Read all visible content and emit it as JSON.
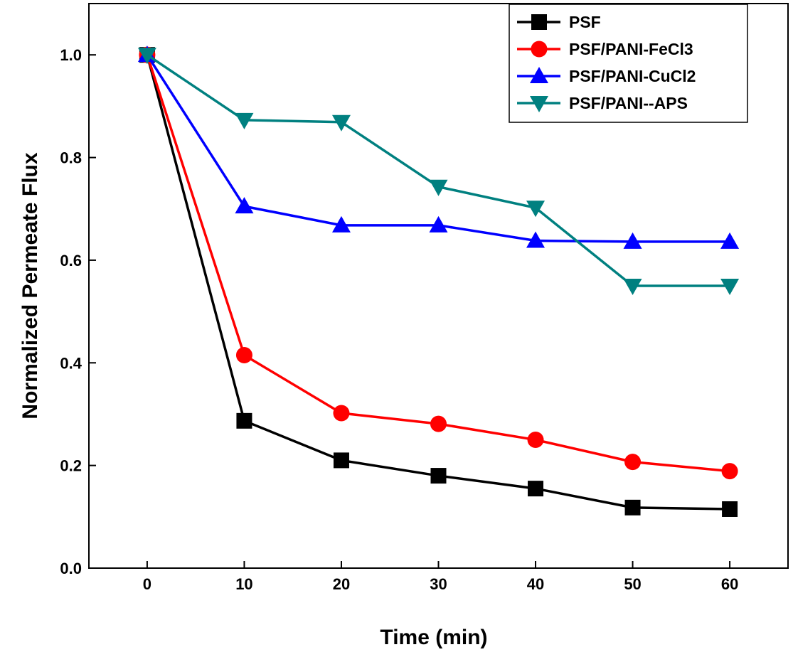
{
  "chart_data": {
    "type": "line",
    "title": "",
    "xlabel": "Time (min)",
    "ylabel": "Normalized Permeate Flux",
    "x": [
      0,
      10,
      20,
      30,
      40,
      50,
      60
    ],
    "xlim": [
      -6,
      66
    ],
    "ylim": [
      0,
      1.1
    ],
    "xticks": [
      0,
      10,
      20,
      30,
      40,
      50,
      60
    ],
    "yticks": [
      0.0,
      0.2,
      0.4,
      0.6,
      0.8,
      1.0
    ],
    "ytick_labels": [
      "0.0",
      "0.2",
      "0.4",
      "0.6",
      "0.8",
      "1.0"
    ],
    "grid": false,
    "legend_position": "top-right",
    "series": [
      {
        "name": "PSF",
        "color": "#000000",
        "marker": "square",
        "values": [
          1.0,
          0.287,
          0.21,
          0.18,
          0.155,
          0.118,
          0.115
        ]
      },
      {
        "name": "PSF/PANI-FeCl3",
        "color": "#ff0000",
        "marker": "circle",
        "values": [
          1.0,
          0.415,
          0.302,
          0.281,
          0.25,
          0.207,
          0.189
        ]
      },
      {
        "name": "PSF/PANI-CuCl2",
        "color": "#0000ff",
        "marker": "triangle-up",
        "values": [
          1.0,
          0.705,
          0.668,
          0.668,
          0.638,
          0.636,
          0.636
        ]
      },
      {
        "name": "PSF/PANI--APS",
        "color": "#008080",
        "marker": "triangle-down",
        "values": [
          1.0,
          0.873,
          0.869,
          0.743,
          0.702,
          0.55,
          0.55
        ]
      }
    ]
  }
}
